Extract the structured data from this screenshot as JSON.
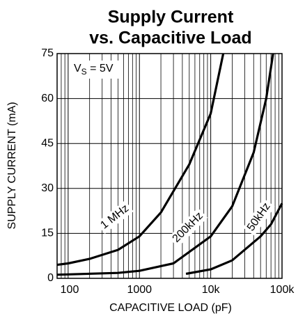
{
  "chart_data": {
    "type": "line",
    "title": [
      "Supply Current",
      "vs. Capacitive Load"
    ],
    "x_label": "CAPACITIVE LOAD (pF)",
    "y_label": "SUPPLY CURRENT (mA)",
    "annotation": [
      "V",
      "S",
      " = 5V"
    ],
    "xscale": "log",
    "xlim": [
      70,
      100000
    ],
    "xticks": [
      100,
      1000,
      {
        "value": 10000,
        "label": "10k"
      },
      {
        "value": 100000,
        "label": "100k"
      }
    ],
    "ylim": [
      0,
      75
    ],
    "yticks": [
      0,
      15,
      30,
      45,
      60,
      75
    ],
    "grid": true,
    "series": [
      {
        "name": "1 MHz",
        "color": "#000000",
        "x": [
          70,
          100,
          200,
          500,
          1000,
          2000,
          5000,
          10000,
          15000
        ],
        "values": [
          4.5,
          5,
          6.5,
          9.5,
          14,
          22,
          38,
          55,
          75
        ]
      },
      {
        "name": "200kHz",
        "color": "#000000",
        "x": [
          70,
          500,
          1000,
          3000,
          10000,
          20000,
          40000,
          60000,
          75000
        ],
        "values": [
          1.2,
          1.8,
          2.5,
          5,
          14,
          24,
          42,
          60,
          75
        ]
      },
      {
        "name": "50kHz",
        "color": "#000000",
        "x": [
          4500,
          10000,
          20000,
          50000,
          70000,
          100000
        ],
        "values": [
          1.5,
          3,
          6,
          14,
          18,
          25
        ]
      }
    ]
  }
}
